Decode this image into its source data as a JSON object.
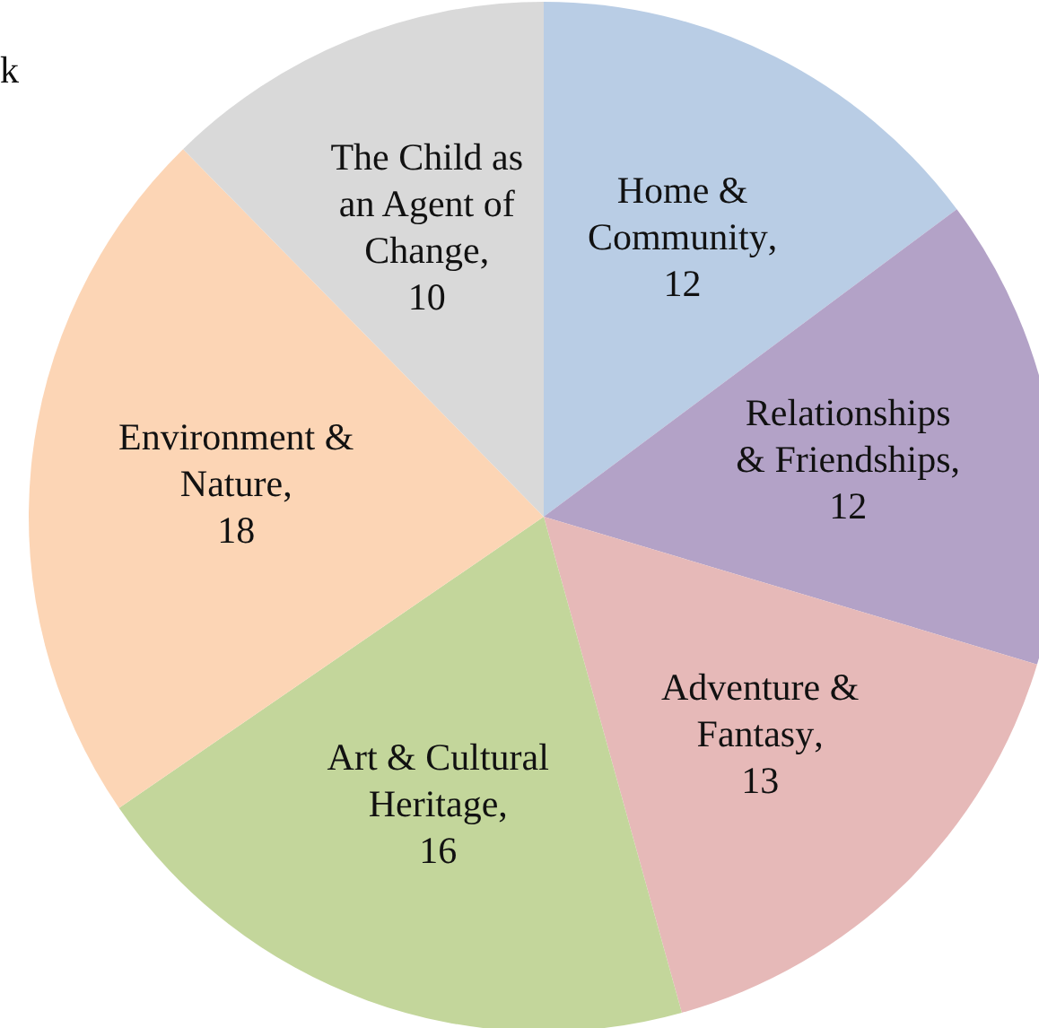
{
  "chart_data": {
    "type": "pie",
    "categories": [
      "Home & Community",
      "Relationships & Friendships",
      "Adventure & Fantasy",
      "Art & Cultural Heritage",
      "Environment & Nature",
      "The Child as an Agent of Change"
    ],
    "values": [
      12,
      12,
      13,
      16,
      18,
      10
    ],
    "colors": [
      "#b9cde5",
      "#b3a2c7",
      "#e6b9b8",
      "#c3d69b",
      "#fcd5b5",
      "#d9d9d9"
    ],
    "value_labels": [
      ", 12",
      ", 12",
      ", 13",
      ", 16",
      ", 18",
      ", 10"
    ],
    "annotations": [
      "k"
    ]
  }
}
